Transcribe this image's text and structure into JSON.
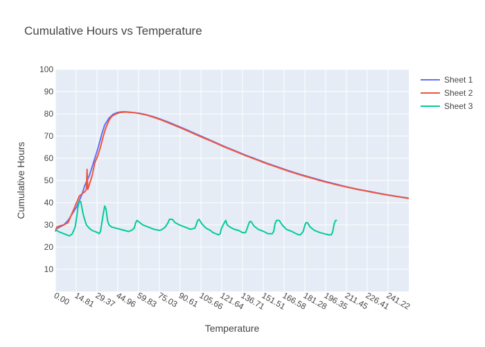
{
  "chart_data": {
    "type": "line",
    "title": "Cumulative Hours vs Temperature",
    "xlabel": "Temperature",
    "ylabel": "Cumulative Hours",
    "xlim": [
      0,
      251
    ],
    "ylim": [
      0,
      100
    ],
    "x_tick_labels": [
      "0.00",
      "14.81",
      "29.37",
      "44.96",
      "59.83",
      "75.03",
      "90.61",
      "105.66",
      "121.64",
      "136.71",
      "151.51",
      "166.58",
      "181.28",
      "196.35",
      "211.45",
      "226.41",
      "241.22"
    ],
    "y_ticks": [
      10,
      20,
      30,
      40,
      50,
      60,
      70,
      80,
      90,
      100
    ],
    "grid": true,
    "legend_position": "top-right",
    "series": [
      {
        "name": "Sheet 1",
        "color": "#636efa",
        "points": [
          [
            0,
            28
          ],
          [
            3,
            29
          ],
          [
            6,
            30
          ],
          [
            9,
            32
          ],
          [
            12,
            35
          ],
          [
            15,
            38
          ],
          [
            17,
            41
          ],
          [
            19,
            44
          ],
          [
            21,
            48
          ],
          [
            24,
            52
          ],
          [
            27,
            58
          ],
          [
            30,
            64
          ],
          [
            33,
            71
          ],
          [
            35,
            75
          ],
          [
            38,
            78
          ],
          [
            41,
            79.8
          ],
          [
            44,
            80.6
          ],
          [
            47,
            80.9
          ],
          [
            50,
            80.9
          ],
          [
            55,
            80.6
          ],
          [
            60,
            80.2
          ],
          [
            65,
            79.5
          ],
          [
            70,
            78.6
          ],
          [
            75,
            77.5
          ],
          [
            80,
            76.3
          ],
          [
            85,
            75.0
          ],
          [
            90,
            73.7
          ],
          [
            95,
            72.3
          ],
          [
            100,
            70.9
          ],
          [
            105,
            69.5
          ],
          [
            110,
            68.1
          ],
          [
            115,
            66.7
          ],
          [
            120,
            65.3
          ],
          [
            125,
            64.0
          ],
          [
            130,
            62.7
          ],
          [
            135,
            61.4
          ],
          [
            140,
            60.2
          ],
          [
            145,
            59.0
          ],
          [
            150,
            57.8
          ],
          [
            155,
            56.7
          ],
          [
            160,
            55.6
          ],
          [
            165,
            54.5
          ],
          [
            170,
            53.5
          ],
          [
            175,
            52.5
          ],
          [
            180,
            51.6
          ],
          [
            185,
            50.7
          ],
          [
            190,
            49.8
          ],
          [
            195,
            49.0
          ],
          [
            200,
            48.2
          ],
          [
            205,
            47.4
          ],
          [
            210,
            46.7
          ],
          [
            215,
            46.0
          ],
          [
            220,
            45.4
          ],
          [
            225,
            44.8
          ],
          [
            230,
            44.2
          ],
          [
            235,
            43.6
          ],
          [
            240,
            43.1
          ],
          [
            245,
            42.6
          ],
          [
            250,
            42.1
          ],
          [
            251,
            42.0
          ]
        ]
      },
      {
        "name": "Sheet 2",
        "color": "#ef553b",
        "points": [
          [
            0,
            27
          ],
          [
            1,
            29
          ],
          [
            3,
            29.5
          ],
          [
            6,
            30
          ],
          [
            9,
            31
          ],
          [
            11,
            34
          ],
          [
            13,
            37
          ],
          [
            15,
            40
          ],
          [
            17,
            43
          ],
          [
            19,
            44
          ],
          [
            21,
            45
          ],
          [
            22,
            46
          ],
          [
            22.5,
            55
          ],
          [
            23,
            46
          ],
          [
            24,
            48
          ],
          [
            26,
            52
          ],
          [
            28,
            58
          ],
          [
            30,
            61
          ],
          [
            32,
            65
          ],
          [
            34,
            70
          ],
          [
            36,
            74
          ],
          [
            38,
            77
          ],
          [
            40,
            78.8
          ],
          [
            43,
            80.0
          ],
          [
            46,
            80.6
          ],
          [
            50,
            80.8
          ],
          [
            55,
            80.6
          ],
          [
            60,
            80.1
          ],
          [
            65,
            79.4
          ],
          [
            70,
            78.4
          ],
          [
            75,
            77.3
          ],
          [
            80,
            76.0
          ],
          [
            85,
            74.7
          ],
          [
            90,
            73.4
          ],
          [
            95,
            72.0
          ],
          [
            100,
            70.6
          ],
          [
            105,
            69.2
          ],
          [
            110,
            67.9
          ],
          [
            115,
            66.5
          ],
          [
            120,
            65.1
          ],
          [
            125,
            63.8
          ],
          [
            130,
            62.5
          ],
          [
            135,
            61.2
          ],
          [
            140,
            60.0
          ],
          [
            145,
            58.8
          ],
          [
            150,
            57.6
          ],
          [
            155,
            56.5
          ],
          [
            160,
            55.4
          ],
          [
            165,
            54.3
          ],
          [
            170,
            53.3
          ],
          [
            175,
            52.3
          ],
          [
            180,
            51.4
          ],
          [
            185,
            50.5
          ],
          [
            190,
            49.6
          ],
          [
            195,
            48.8
          ],
          [
            200,
            48.0
          ],
          [
            205,
            47.3
          ],
          [
            210,
            46.6
          ],
          [
            215,
            45.9
          ],
          [
            220,
            45.3
          ],
          [
            225,
            44.7
          ],
          [
            230,
            44.1
          ],
          [
            235,
            43.5
          ],
          [
            240,
            43.0
          ],
          [
            245,
            42.5
          ],
          [
            250,
            42.0
          ],
          [
            251,
            41.9
          ]
        ]
      },
      {
        "name": "Sheet 3",
        "color": "#00cc96",
        "points": [
          [
            0,
            28
          ],
          [
            2,
            27
          ],
          [
            4,
            26.5
          ],
          [
            6,
            26
          ],
          [
            8,
            25.5
          ],
          [
            10,
            25
          ],
          [
            12,
            26
          ],
          [
            14,
            29
          ],
          [
            15,
            33
          ],
          [
            16,
            38
          ],
          [
            17,
            40.5
          ],
          [
            18,
            40.5
          ],
          [
            19,
            37
          ],
          [
            20,
            34
          ],
          [
            22,
            30
          ],
          [
            24,
            28.5
          ],
          [
            26,
            27.5
          ],
          [
            28,
            27
          ],
          [
            30,
            26.5
          ],
          [
            31,
            26
          ],
          [
            32,
            27
          ],
          [
            33,
            31
          ],
          [
            34,
            35
          ],
          [
            35,
            38.5
          ],
          [
            36,
            37
          ],
          [
            37,
            32
          ],
          [
            38,
            30
          ],
          [
            40,
            29
          ],
          [
            43,
            28.5
          ],
          [
            46,
            28
          ],
          [
            49,
            27.5
          ],
          [
            52,
            27
          ],
          [
            54,
            27.5
          ],
          [
            56,
            28.5
          ],
          [
            57,
            31
          ],
          [
            58,
            32
          ],
          [
            60,
            31
          ],
          [
            62,
            30
          ],
          [
            66,
            29
          ],
          [
            70,
            28
          ],
          [
            74,
            27.5
          ],
          [
            76,
            28
          ],
          [
            78,
            29
          ],
          [
            80,
            31
          ],
          [
            81,
            32.5
          ],
          [
            83,
            32.5
          ],
          [
            85,
            31
          ],
          [
            88,
            30
          ],
          [
            92,
            29
          ],
          [
            96,
            28
          ],
          [
            99,
            28.5
          ],
          [
            100,
            30
          ],
          [
            101,
            32
          ],
          [
            102,
            32.5
          ],
          [
            104,
            30.5
          ],
          [
            107,
            28.5
          ],
          [
            110,
            27.5
          ],
          [
            112,
            26.5
          ],
          [
            114,
            26
          ],
          [
            116,
            25.5
          ],
          [
            117,
            26
          ],
          [
            118,
            28.5
          ],
          [
            120,
            31
          ],
          [
            121,
            32
          ],
          [
            122,
            30
          ],
          [
            124,
            29
          ],
          [
            127,
            28
          ],
          [
            130,
            27.5
          ],
          [
            133,
            26.5
          ],
          [
            135,
            26.5
          ],
          [
            136,
            28
          ],
          [
            137,
            30
          ],
          [
            138,
            31.5
          ],
          [
            139,
            31.5
          ],
          [
            141,
            29.5
          ],
          [
            144,
            28
          ],
          [
            148,
            27
          ],
          [
            151,
            26
          ],
          [
            154,
            26
          ],
          [
            155,
            27
          ],
          [
            156,
            30.5
          ],
          [
            157,
            32
          ],
          [
            159,
            32
          ],
          [
            161,
            30
          ],
          [
            164,
            28
          ],
          [
            168,
            27
          ],
          [
            171,
            26
          ],
          [
            173,
            25.5
          ],
          [
            174,
            25.5
          ],
          [
            176,
            27
          ],
          [
            177,
            29.5
          ],
          [
            178,
            31
          ],
          [
            179,
            31
          ],
          [
            181,
            29
          ],
          [
            184,
            27.5
          ],
          [
            188,
            26.5
          ],
          [
            191,
            26
          ],
          [
            194,
            25.5
          ],
          [
            196,
            25.5
          ],
          [
            197,
            27
          ],
          [
            198,
            30.5
          ],
          [
            199,
            32
          ],
          [
            200,
            32
          ]
        ]
      }
    ]
  }
}
